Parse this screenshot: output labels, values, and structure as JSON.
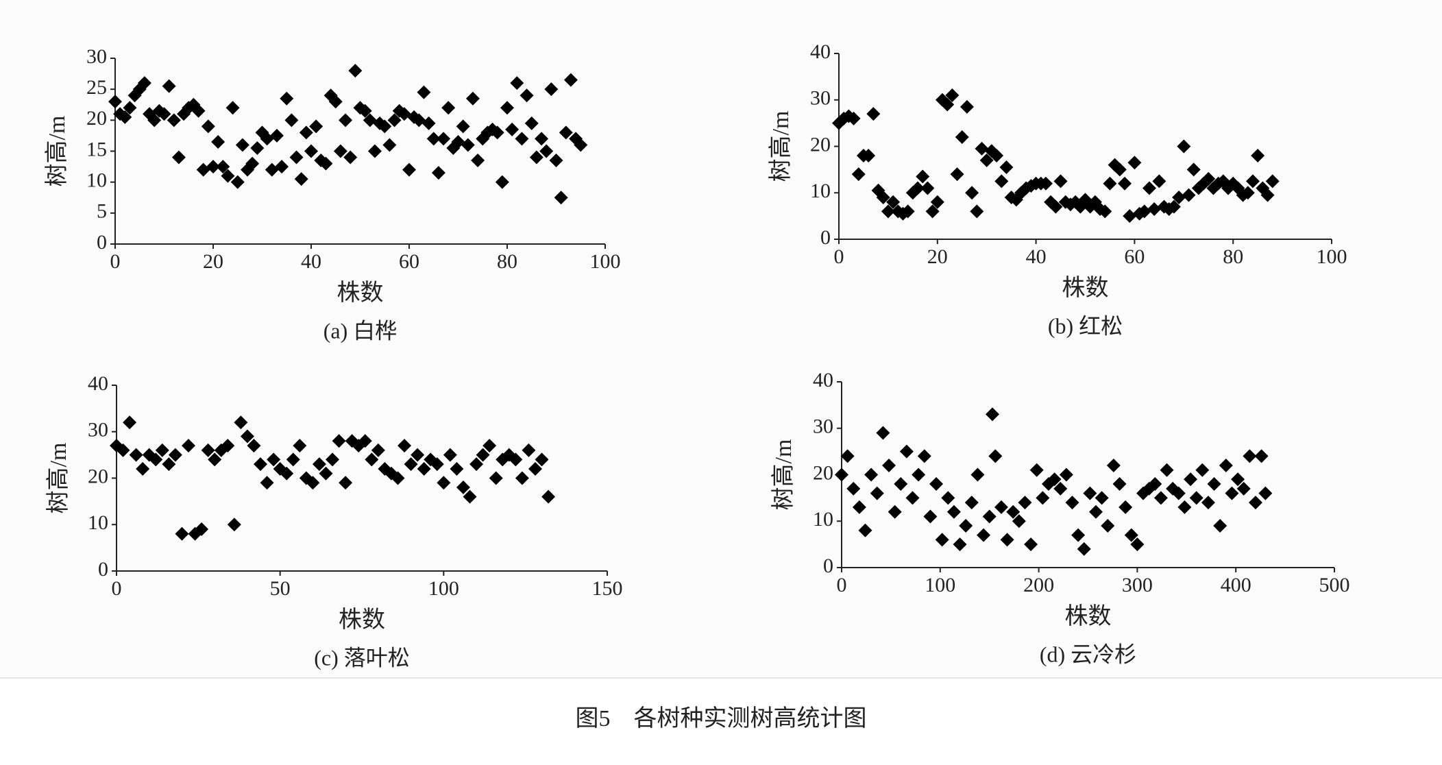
{
  "chart_data": [
    {
      "type": "scatter",
      "caption": "(a) 白桦",
      "xlabel": "株数",
      "ylabel": "树高/m",
      "color": "#000000",
      "xlim": [
        0,
        100
      ],
      "ylim": [
        0,
        30
      ],
      "xticks": [
        0,
        20,
        40,
        60,
        80,
        100
      ],
      "yticks": [
        0,
        5,
        10,
        15,
        20,
        25,
        30
      ],
      "x": [
        0,
        1,
        2,
        3,
        4,
        5,
        6,
        7,
        8,
        9,
        10,
        11,
        12,
        13,
        14,
        15,
        16,
        17,
        18,
        19,
        20,
        21,
        22,
        23,
        24,
        25,
        26,
        27,
        28,
        29,
        30,
        31,
        32,
        33,
        34,
        35,
        36,
        37,
        38,
        39,
        40,
        41,
        42,
        43,
        44,
        45,
        46,
        47,
        48,
        49,
        50,
        51,
        52,
        53,
        54,
        55,
        56,
        57,
        58,
        59,
        60,
        61,
        62,
        63,
        64,
        65,
        66,
        67,
        68,
        69,
        70,
        71,
        72,
        73,
        74,
        75,
        76,
        77,
        78,
        79,
        80,
        81,
        82,
        83,
        84,
        85,
        86,
        87,
        88,
        89,
        90,
        91,
        92,
        93,
        94,
        95
      ],
      "values": [
        23,
        21,
        20.5,
        22,
        24,
        25,
        26,
        21,
        20,
        21.5,
        21,
        25.5,
        20,
        14,
        21,
        22,
        22.5,
        21.5,
        12,
        19,
        12.5,
        16.5,
        12.5,
        11,
        22,
        10,
        16,
        12,
        13,
        15.5,
        18,
        17,
        12,
        17.5,
        12.5,
        23.5,
        20,
        14,
        10.5,
        18,
        15,
        19,
        13.5,
        13,
        24,
        23,
        15,
        20,
        14,
        28,
        22,
        21.5,
        20,
        15,
        19.5,
        19,
        16,
        20,
        21.5,
        21,
        12,
        20.5,
        20,
        24.5,
        19.5,
        17,
        11.5,
        17,
        22,
        15.5,
        16.5,
        19,
        16,
        23.5,
        13.5,
        17,
        18,
        18.5,
        18,
        10,
        22,
        18.5,
        26,
        17,
        24,
        19.5,
        14,
        17,
        15,
        25,
        13.5,
        7.5,
        18,
        26.5,
        17,
        16
      ]
    },
    {
      "type": "scatter",
      "caption": "(b) 红松",
      "xlabel": "株数",
      "ylabel": "树高/m",
      "color": "#000000",
      "xlim": [
        0,
        100
      ],
      "ylim": [
        0,
        40
      ],
      "xticks": [
        0,
        20,
        40,
        60,
        80,
        100
      ],
      "yticks": [
        0,
        10,
        20,
        30,
        40
      ],
      "x": [
        0,
        1,
        2,
        3,
        4,
        5,
        6,
        7,
        8,
        9,
        10,
        11,
        12,
        13,
        14,
        15,
        16,
        17,
        18,
        19,
        20,
        21,
        22,
        23,
        24,
        25,
        26,
        27,
        28,
        29,
        30,
        31,
        32,
        33,
        34,
        35,
        36,
        37,
        38,
        39,
        40,
        41,
        42,
        43,
        44,
        45,
        46,
        47,
        48,
        49,
        50,
        51,
        52,
        53,
        54,
        55,
        56,
        57,
        58,
        59,
        60,
        61,
        62,
        63,
        64,
        65,
        66,
        67,
        68,
        69,
        70,
        71,
        72,
        73,
        74,
        75,
        76,
        77,
        78,
        79,
        80,
        81,
        82,
        83,
        84,
        85,
        86,
        87,
        88
      ],
      "values": [
        25,
        26,
        26.5,
        26,
        14,
        18,
        18,
        27,
        10.5,
        9,
        6,
        8,
        6,
        5.5,
        6,
        10,
        11,
        13.5,
        11,
        6,
        8,
        30,
        29,
        31,
        14,
        22,
        28.5,
        10,
        6,
        19.5,
        17,
        19,
        18,
        12.5,
        15.5,
        9,
        8.5,
        10,
        11,
        11.5,
        12,
        12,
        12,
        8,
        7,
        12.5,
        8,
        7.5,
        8,
        7,
        8.5,
        7,
        8,
        6.5,
        6,
        12,
        16,
        15,
        12,
        5,
        16.5,
        5.5,
        6,
        11,
        6.5,
        12.5,
        7,
        6.5,
        7,
        9,
        20,
        9.5,
        15,
        11,
        12,
        13,
        11,
        12,
        12.5,
        11,
        12,
        11,
        9.5,
        10,
        12.5,
        18,
        11,
        9.5,
        12.5
      ]
    },
    {
      "type": "scatter",
      "caption": "(c) 落叶松",
      "xlabel": "株数",
      "ylabel": "树高/m",
      "color": "#000000",
      "xlim": [
        0,
        150
      ],
      "ylim": [
        0,
        40
      ],
      "xticks": [
        0,
        50,
        100,
        150
      ],
      "yticks": [
        0,
        10,
        20,
        30,
        40
      ],
      "x": [
        0,
        2,
        4,
        6,
        8,
        10,
        12,
        14,
        16,
        18,
        20,
        22,
        24,
        26,
        28,
        30,
        32,
        34,
        36,
        38,
        40,
        42,
        44,
        46,
        48,
        50,
        52,
        54,
        56,
        58,
        60,
        62,
        64,
        66,
        68,
        70,
        72,
        74,
        76,
        78,
        80,
        82,
        84,
        86,
        88,
        90,
        92,
        94,
        96,
        98,
        100,
        102,
        104,
        106,
        108,
        110,
        112,
        114,
        116,
        118,
        120,
        122,
        124,
        126,
        128,
        130,
        132
      ],
      "values": [
        27,
        26,
        32,
        25,
        22,
        25,
        24,
        26,
        23,
        25,
        8,
        27,
        8,
        9,
        26,
        24,
        26,
        27,
        10,
        32,
        29,
        27,
        23,
        19,
        24,
        22,
        21,
        24,
        27,
        20,
        19,
        23,
        21,
        24,
        28,
        19,
        28,
        27,
        28,
        24,
        26,
        22,
        21,
        20,
        27,
        23,
        25,
        22,
        24,
        23,
        19,
        25,
        22,
        18,
        16,
        23,
        25,
        27,
        20,
        24,
        25,
        24,
        20,
        26,
        22,
        24,
        16
      ]
    },
    {
      "type": "scatter",
      "caption": "(d) 云冷杉",
      "xlabel": "株数",
      "ylabel": "树高/m",
      "color": "#000000",
      "xlim": [
        0,
        500
      ],
      "ylim": [
        0,
        40
      ],
      "xticks": [
        0,
        100,
        200,
        300,
        400,
        500
      ],
      "yticks": [
        0,
        10,
        20,
        30,
        40
      ],
      "x": [
        0,
        6,
        12,
        18,
        24,
        30,
        36,
        42,
        48,
        54,
        60,
        66,
        72,
        78,
        84,
        90,
        96,
        102,
        108,
        114,
        120,
        126,
        132,
        138,
        144,
        150,
        153,
        156,
        162,
        168,
        174,
        180,
        186,
        192,
        198,
        204,
        210,
        216,
        222,
        228,
        234,
        240,
        246,
        252,
        258,
        264,
        270,
        276,
        282,
        288,
        294,
        300,
        306,
        312,
        318,
        324,
        330,
        336,
        342,
        348,
        354,
        360,
        366,
        372,
        378,
        384,
        390,
        396,
        402,
        408,
        414,
        420,
        426,
        430
      ],
      "values": [
        20,
        24,
        17,
        13,
        8,
        20,
        16,
        29,
        22,
        12,
        18,
        25,
        15,
        20,
        24,
        11,
        18,
        6,
        15,
        12,
        5,
        9,
        14,
        20,
        7,
        11,
        33,
        24,
        13,
        6,
        12,
        10,
        14,
        5,
        21,
        15,
        18,
        19,
        17,
        20,
        14,
        7,
        4,
        16,
        12,
        15,
        9,
        22,
        18,
        13,
        7,
        5,
        16,
        17,
        18,
        15,
        21,
        17,
        16,
        13,
        19,
        15,
        21,
        14,
        18,
        9,
        22,
        16,
        19,
        17,
        24,
        14,
        24,
        16
      ]
    }
  ],
  "figure_caption": "图5　各树种实测树高统计图"
}
